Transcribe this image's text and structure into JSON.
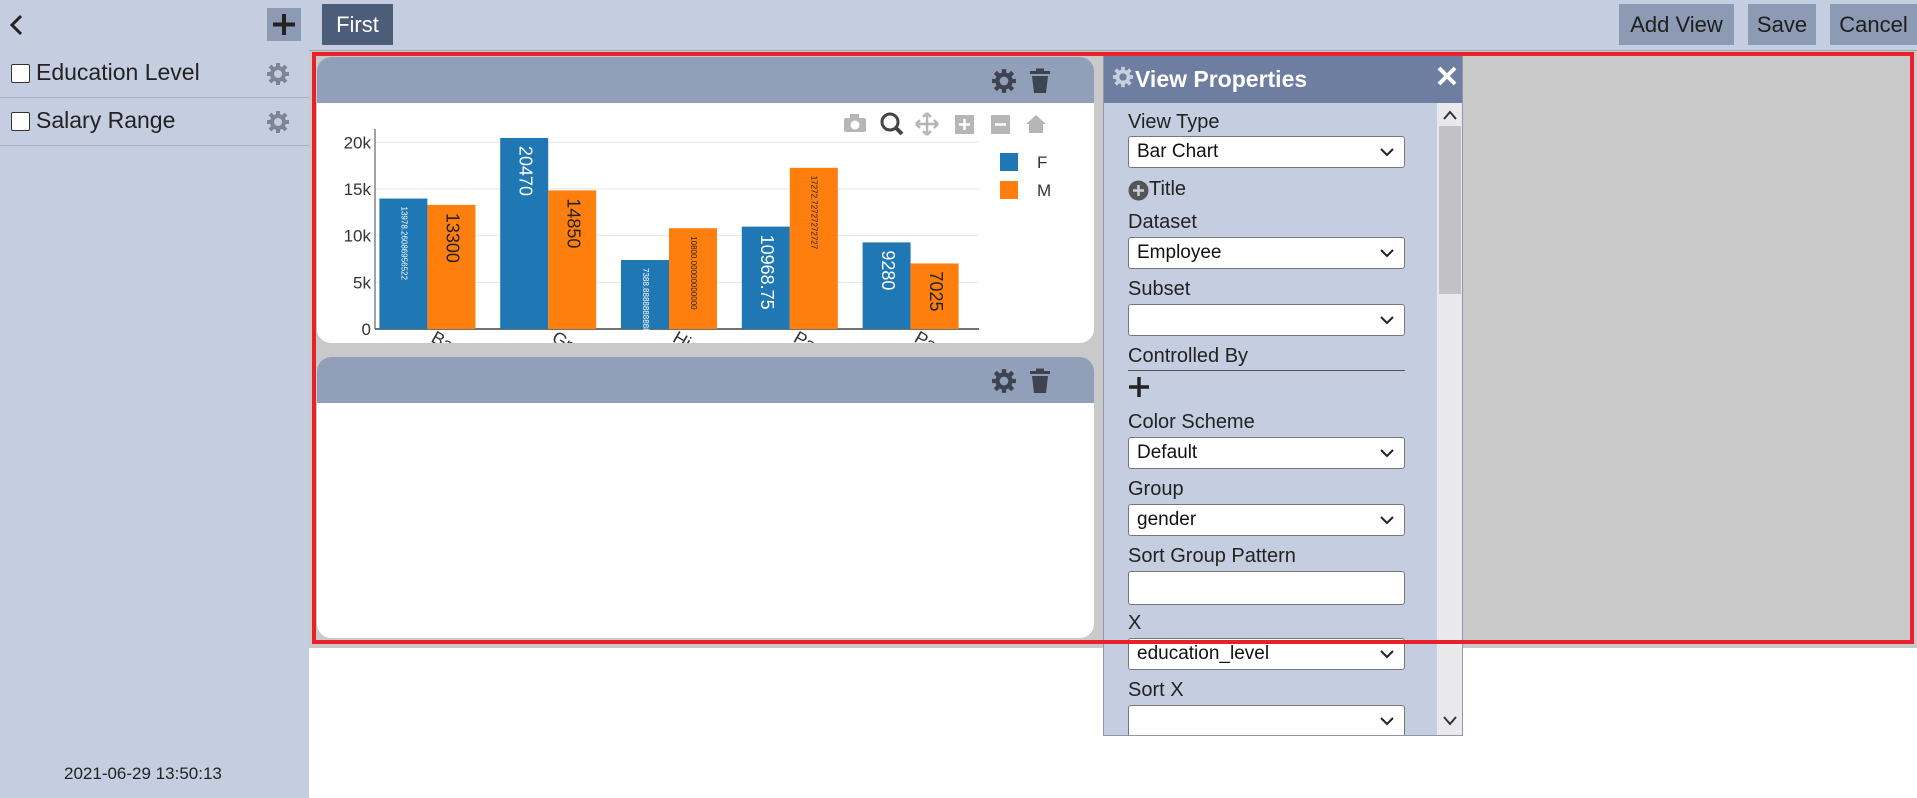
{
  "toolbar": {
    "first_tab": "First",
    "add_view_label": "Add View",
    "save_label": "Save",
    "cancel_label": "Cancel"
  },
  "sidebar": {
    "filters": [
      {
        "label": "Education Level"
      },
      {
        "label": "Salary Range"
      }
    ],
    "timestamp": "2021-06-29 13:50:13"
  },
  "properties": {
    "title": "View Properties",
    "view_type_label": "View Type",
    "view_type_value": "Bar Chart",
    "title_toggle": "Title",
    "dataset_label": "Dataset",
    "dataset_value": "Employee",
    "subset_label": "Subset",
    "subset_value": "",
    "controlled_by_label": "Controlled By",
    "color_scheme_label": "Color Scheme",
    "color_scheme_value": "Default",
    "group_label": "Group",
    "group_value": "gender",
    "sort_group_label": "Sort Group Pattern",
    "sort_group_value": "",
    "x_label": "X",
    "x_value": "education_level",
    "sort_x_label": "Sort X",
    "sort_x_value": ""
  },
  "chart_data": {
    "type": "bar",
    "categories": [
      "Bachelors ...",
      "Graduate D...",
      "High Scho...",
      "Partial Coll...",
      "Partial Hig..."
    ],
    "series": [
      {
        "name": "F",
        "color": "#1f77b4",
        "values": [
          13978.26,
          20470,
          7388.89,
          10968.75,
          9280
        ],
        "labels": [
          "13978.26086956522",
          "20470",
          "7388.888888888889",
          "10968.75",
          "9280"
        ]
      },
      {
        "name": "M",
        "color": "#ff7f0e",
        "values": [
          13300,
          14850,
          10800,
          17272.73,
          7025
        ],
        "labels": [
          "13300",
          "14850",
          "10800.00000000000",
          "17272.72727272727",
          "7025"
        ]
      }
    ],
    "yticks": [
      "0",
      "5k",
      "10k",
      "15k",
      "20k"
    ],
    "ylim": [
      0,
      21000
    ],
    "legend": "top-right",
    "grid": true
  },
  "icons": {
    "gear": "gear-icon",
    "trash": "trash-icon",
    "camera": "camera-icon",
    "zoom": "zoom-icon",
    "pan": "pan-icon",
    "plus": "plus-icon",
    "minus": "minus-icon",
    "home": "home-icon"
  },
  "colors": {
    "panel_bg": "#c5cee0",
    "header_bg": "#929fb8",
    "highlight": "#e8202a"
  }
}
